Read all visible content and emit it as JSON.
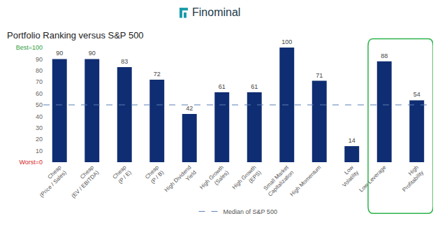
{
  "logo": "Finominal",
  "chart_data": {
    "type": "bar",
    "title": "Portfolio Ranking versus S&P 500",
    "categories": [
      "Cheap (Price / Sales)",
      "Cheap (EV / EBITDA)",
      "Cheap (P / E)",
      "Cheap (P / B)",
      "High Dividend Yield",
      "High Growth (Sales)",
      "High Growth (EPS)",
      "Small Market Capitalization",
      "High Momentum",
      "Low Volatility",
      "Low Leverage",
      "High Profitability"
    ],
    "values": [
      90,
      90,
      83,
      72,
      42,
      61,
      61,
      100,
      71,
      14,
      88,
      54
    ],
    "color": "#0f2d72",
    "data_labels": true,
    "ylim": [
      0,
      100
    ],
    "yticks": [
      {
        "value": 0,
        "label": "Worst=0"
      },
      10,
      20,
      30,
      40,
      50,
      60,
      70,
      80,
      90,
      {
        "value": 100,
        "label": "Best=100"
      }
    ],
    "grid": false,
    "reference_lines": [
      {
        "name": "Median of S&P 500",
        "value": 50,
        "color": "#5b7fb5",
        "line_style": "dashed"
      }
    ]
  }
}
